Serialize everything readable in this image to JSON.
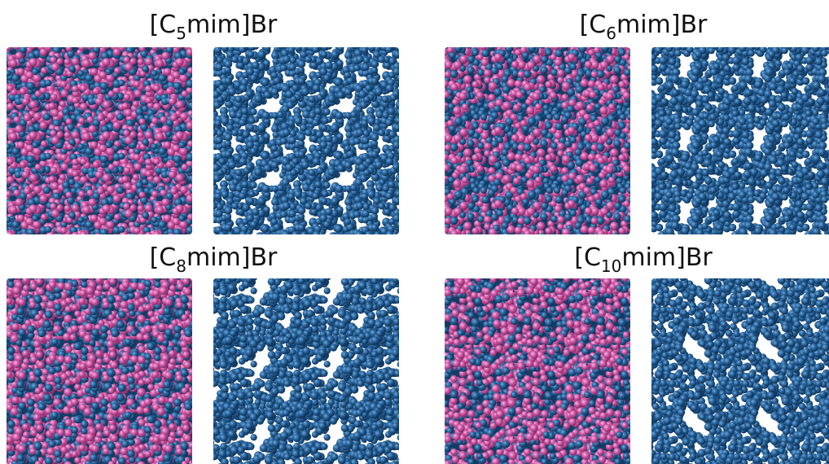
{
  "panels": [
    {
      "title": {
        "prefix": "[C",
        "subscript": "5",
        "suffix": "mim]Br"
      }
    },
    {
      "title": {
        "prefix": "[C",
        "subscript": "6",
        "suffix": "mim]Br"
      }
    },
    {
      "title": {
        "prefix": "[C",
        "subscript": "8",
        "suffix": "mim]Br"
      }
    },
    {
      "title": {
        "prefix": "[C",
        "subscript": "10",
        "suffix": "mim]Br"
      }
    }
  ]
}
